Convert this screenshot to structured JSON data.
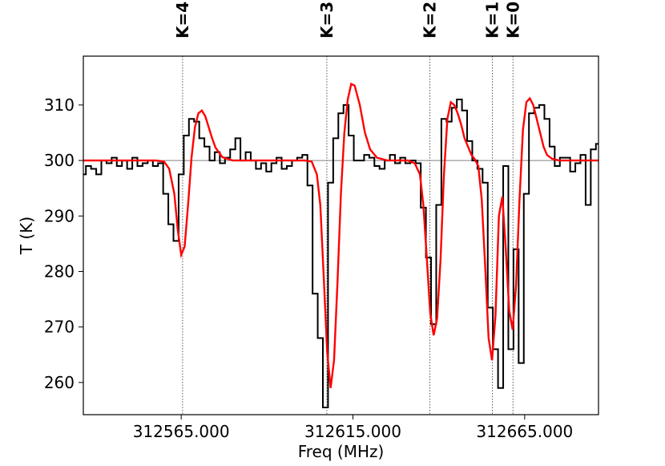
{
  "chart_data": {
    "type": "line",
    "xlabel": "Freq (MHz)",
    "ylabel": "T (K)",
    "xlim": [
      312536.5,
      312686.5
    ],
    "ylim": [
      254.2,
      318.8
    ],
    "xticks": [
      {
        "value": 312565,
        "label": "312565.000"
      },
      {
        "value": 312615,
        "label": "312615.000"
      },
      {
        "value": 312665,
        "label": "312665.000"
      }
    ],
    "yticks": [
      260,
      270,
      280,
      290,
      300,
      310
    ],
    "baseline": 300,
    "grid": false,
    "legend": "none",
    "markers": [
      {
        "label": "K=4",
        "freq": 312565.4
      },
      {
        "label": "K=3",
        "freq": 312607.4
      },
      {
        "label": "K=2",
        "freq": 312637.4
      },
      {
        "label": "K=1",
        "freq": 312655.6
      },
      {
        "label": "K=0",
        "freq": 312661.6
      }
    ],
    "series": [
      {
        "style": "step",
        "color": "#000000",
        "x": [
          312536.5,
          312538.0,
          312539.5,
          312541.0,
          312542.5,
          312544.0,
          312545.5,
          312547.0,
          312548.5,
          312550.0,
          312551.5,
          312553.0,
          312554.5,
          312556.0,
          312557.5,
          312559.0,
          312560.5,
          312562.0,
          312563.5,
          312565.0,
          312566.5,
          312568.0,
          312569.5,
          312571.0,
          312572.5,
          312574.0,
          312575.5,
          312577.0,
          312578.5,
          312580.0,
          312581.5,
          312583.0,
          312584.5,
          312586.0,
          312587.5,
          312589.0,
          312590.5,
          312592.0,
          312593.5,
          312595.0,
          312596.5,
          312598.0,
          312599.5,
          312601.0,
          312602.5,
          312604.0,
          312605.5,
          312607.0,
          312608.5,
          312610.0,
          312611.5,
          312613.0,
          312614.5,
          312616.0,
          312617.5,
          312619.0,
          312620.5,
          312622.0,
          312623.5,
          312625.0,
          312626.5,
          312628.0,
          312629.5,
          312631.0,
          312632.5,
          312634.0,
          312635.5,
          312637.0,
          312638.5,
          312640.0,
          312641.5,
          312643.0,
          312644.5,
          312646.0,
          312647.5,
          312649.0,
          312650.5,
          312652.0,
          312653.5,
          312655.0,
          312656.5,
          312658.0,
          312659.5,
          312661.0,
          312662.5,
          312664.0,
          312665.5,
          312667.0,
          312668.5,
          312670.0,
          312671.5,
          312673.0,
          312674.5,
          312676.0,
          312677.5,
          312679.0,
          312680.5,
          312682.0,
          312683.5,
          312685.0,
          312686.5
        ],
        "y": [
          297.5,
          299.0,
          298.5,
          297.5,
          300.0,
          299.5,
          300.5,
          299.0,
          300.0,
          298.5,
          300.5,
          299.0,
          299.5,
          300.0,
          299.0,
          299.5,
          294.0,
          288.5,
          285.5,
          297.5,
          304.5,
          307.5,
          307.0,
          304.0,
          302.5,
          300.0,
          301.5,
          299.5,
          300.5,
          302.0,
          304.0,
          300.0,
          301.5,
          300.0,
          298.5,
          299.5,
          298.0,
          299.5,
          300.5,
          298.5,
          299.0,
          300.0,
          300.5,
          301.0,
          295.5,
          276.0,
          268.0,
          255.5,
          296.0,
          304.0,
          308.5,
          310.0,
          304.5,
          300.0,
          300.0,
          301.0,
          300.5,
          299.0,
          298.5,
          300.0,
          301.0,
          299.5,
          300.5,
          299.5,
          300.0,
          299.5,
          291.5,
          282.5,
          270.5,
          292.0,
          307.5,
          307.0,
          309.5,
          311.0,
          309.0,
          303.5,
          300.0,
          298.5,
          296.0,
          273.5,
          266.0,
          259.0,
          299.0,
          266.0,
          284.0,
          263.5,
          294.0,
          308.5,
          309.5,
          310.0,
          307.5,
          302.5,
          299.0,
          300.5,
          300.5,
          298.0,
          299.5,
          301.0,
          292.0,
          302.0,
          303.0
        ]
      },
      {
        "style": "line",
        "color": "#ff0000",
        "x": [
          312536.5,
          312540.0,
          312543.5,
          312547.0,
          312550.5,
          312554.0,
          312557.5,
          312560.0,
          312561.5,
          312563.0,
          312564.0,
          312565.0,
          312566.0,
          312567.0,
          312568.0,
          312569.0,
          312570.0,
          312571.0,
          312572.0,
          312573.0,
          312574.0,
          312575.0,
          312577.0,
          312580.0,
          312583.0,
          312586.0,
          312589.0,
          312592.0,
          312595.0,
          312598.0,
          312601.0,
          312603.0,
          312604.5,
          312605.5,
          312606.5,
          312607.5,
          312608.5,
          312609.5,
          312610.5,
          312611.5,
          312612.5,
          312613.5,
          312614.5,
          312615.5,
          312617.0,
          312618.5,
          312620.0,
          312622.0,
          312625.0,
          312628.0,
          312631.0,
          312633.0,
          312634.5,
          312635.5,
          312636.5,
          312637.5,
          312638.5,
          312639.5,
          312640.5,
          312641.5,
          312642.5,
          312643.5,
          312644.5,
          312645.5,
          312646.5,
          312647.5,
          312648.5,
          312649.5,
          312650.5,
          312651.5,
          312652.5,
          312653.5,
          312654.5,
          312655.5,
          312656.5,
          312657.5,
          312658.5,
          312659.5,
          312660.5,
          312661.5,
          312662.5,
          312663.5,
          312664.5,
          312665.5,
          312666.5,
          312667.5,
          312668.5,
          312669.5,
          312670.5,
          312671.5,
          312673.0,
          312675.0,
          312678.0,
          312682.0,
          312686.5
        ],
        "y": [
          300.0,
          300.0,
          300.0,
          300.0,
          300.0,
          300.0,
          300.0,
          299.8,
          298.5,
          294.0,
          287.5,
          283.0,
          284.5,
          292.0,
          300.5,
          306.0,
          308.5,
          309.0,
          308.0,
          306.0,
          304.0,
          302.3,
          300.6,
          300.0,
          300.0,
          300.0,
          300.0,
          300.0,
          300.0,
          300.0,
          300.0,
          299.8,
          297.5,
          292.0,
          279.0,
          265.5,
          259.0,
          264.0,
          278.0,
          294.0,
          305.0,
          311.0,
          313.8,
          313.5,
          310.0,
          305.0,
          302.0,
          300.5,
          300.0,
          300.0,
          300.0,
          299.5,
          297.5,
          292.0,
          282.5,
          272.5,
          268.5,
          271.5,
          282.0,
          297.5,
          307.5,
          310.5,
          310.0,
          308.5,
          306.5,
          304.0,
          302.5,
          301.0,
          300.2,
          299.0,
          293.0,
          281.0,
          268.0,
          264.0,
          272.0,
          290.0,
          293.5,
          284.0,
          273.0,
          269.5,
          277.5,
          293.0,
          305.5,
          310.5,
          311.2,
          310.0,
          307.5,
          305.0,
          302.5,
          301.0,
          300.3,
          300.0,
          300.0,
          300.0,
          300.0
        ]
      }
    ]
  }
}
